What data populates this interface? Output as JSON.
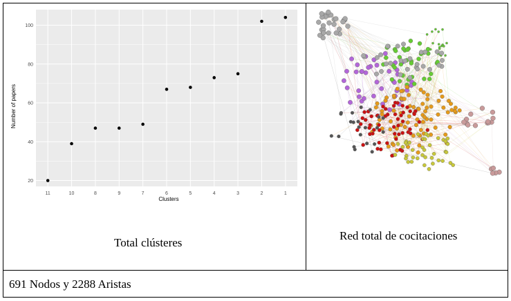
{
  "left_panel": {
    "caption": "Total clústeres",
    "chart_data": {
      "type": "scatter",
      "xlabel": "Clusters",
      "ylabel": "Number of papers",
      "categories": [
        "11",
        "10",
        "8",
        "9",
        "7",
        "6",
        "5",
        "4",
        "3",
        "2",
        "1"
      ],
      "values": [
        20,
        39,
        47,
        47,
        49,
        67,
        68,
        73,
        75,
        102,
        104
      ],
      "yticks": [
        20,
        40,
        60,
        80,
        100
      ],
      "ylim": [
        17,
        108
      ],
      "grid": true
    }
  },
  "right_panel": {
    "caption": "Red total de cocitaciones"
  },
  "footer": {
    "text": "691 Nodos y 2288 Aristas"
  },
  "colors": {
    "plot_bg": "#ebebeb",
    "grid": "#ffffff",
    "point": "#000000",
    "network_grey": "#a8a8a8",
    "network_purple": "#b366d9",
    "network_green": "#66cc33",
    "network_red": "#cc1111",
    "network_orange": "#e69a1a",
    "network_yellow": "#c8c83a",
    "network_pink": "#c99a9a",
    "network_dark": "#555555"
  }
}
